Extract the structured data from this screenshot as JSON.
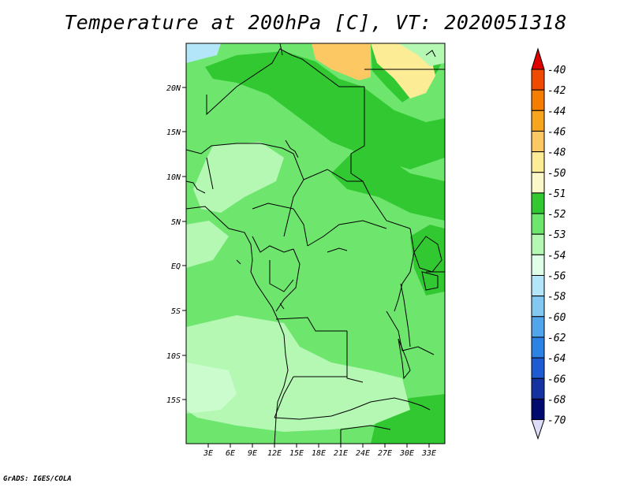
{
  "title": "Temperature at 200hPa [C], VT: 2020051318",
  "credit": "GrADS: IGES/COLA",
  "map": {
    "y_ticks": [
      "20N",
      "15N",
      "10N",
      "5N",
      "EQ",
      "5S",
      "10S",
      "15S"
    ],
    "x_ticks": [
      "3E",
      "6E",
      "9E",
      "12E",
      "15E",
      "18E",
      "21E",
      "24E",
      "27E",
      "30E",
      "33E"
    ],
    "lon_range": [
      0,
      35
    ],
    "lat_range": [
      -20,
      24.5
    ]
  },
  "colorbar": {
    "labels": [
      "-40",
      "-42",
      "-44",
      "-46",
      "-48",
      "-50",
      "-51",
      "-52",
      "-53",
      "-54",
      "-56",
      "-58",
      "-60",
      "-62",
      "-64",
      "-66",
      "-68",
      "-70"
    ],
    "top_color": "#e00000",
    "bottom_color": "#dcdcf8",
    "colors": [
      "#e81e00",
      "#f04a00",
      "#f57d00",
      "#f7a41e",
      "#fcc864",
      "#fcec96",
      "#faf8c8",
      "#32c832",
      "#6ee66e",
      "#b4f8b4",
      "#e0ffe8",
      "#b4e6fa",
      "#82c8f0",
      "#50a5eb",
      "#2d82e6",
      "#1e5ad2",
      "#1432a0",
      "#000a6e"
    ]
  }
}
